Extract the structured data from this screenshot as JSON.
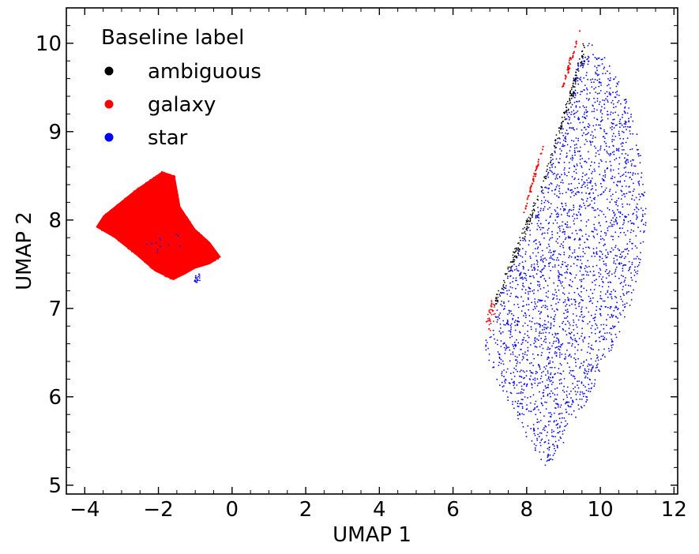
{
  "chart_data": {
    "type": "scatter",
    "title": "",
    "xlabel": "UMAP 1",
    "ylabel": "UMAP 2",
    "xlim": [
      -4.5,
      12.1
    ],
    "ylim": [
      4.9,
      10.4
    ],
    "xticks": [
      -4,
      -2,
      0,
      2,
      4,
      6,
      8,
      10,
      12
    ],
    "xtick_labels": [
      "−4",
      "−2",
      "0",
      "2",
      "4",
      "6",
      "8",
      "10",
      "12"
    ],
    "yticks": [
      5,
      6,
      7,
      8,
      9,
      10
    ],
    "ytick_labels": [
      "5",
      "6",
      "7",
      "8",
      "9",
      "10"
    ],
    "grid": false,
    "legend": {
      "title": "Baseline label",
      "placement": "top-left",
      "entries": [
        {
          "label": "ambiguous",
          "color": "#000000"
        },
        {
          "label": "galaxy",
          "color": "#ff0000"
        },
        {
          "label": "star",
          "color": "#0000ff"
        }
      ]
    },
    "series": [
      {
        "name": "galaxy",
        "color": "#ff0000",
        "regions": [
          {
            "polygon": [
              [
                -3.7,
                7.92
              ],
              [
                -3.5,
                8.05
              ],
              [
                -2.6,
                8.35
              ],
              [
                -1.9,
                8.55
              ],
              [
                -1.55,
                8.5
              ],
              [
                -1.4,
                8.15
              ],
              [
                -1.0,
                7.9
              ],
              [
                -0.6,
                7.75
              ],
              [
                -0.3,
                7.58
              ],
              [
                -0.6,
                7.5
              ],
              [
                -1.0,
                7.45
              ],
              [
                -1.3,
                7.38
              ],
              [
                -1.6,
                7.32
              ],
              [
                -2.1,
                7.42
              ],
              [
                -2.6,
                7.6
              ],
              [
                -3.2,
                7.8
              ]
            ],
            "n": 1400
          },
          {
            "polygon": [
              [
                9.45,
                10.15
              ],
              [
                9.15,
                9.8
              ],
              [
                8.9,
                9.4
              ],
              [
                8.5,
                8.9
              ],
              [
                8.05,
                8.2
              ],
              [
                7.9,
                8.05
              ],
              [
                8.25,
                8.6
              ],
              [
                8.7,
                9.15
              ],
              [
                9.2,
                9.75
              ]
            ],
            "n": 450
          },
          {
            "polygon": [
              [
                7.0,
                6.72
              ],
              [
                6.9,
                6.85
              ],
              [
                7.05,
                7.1
              ],
              [
                7.2,
                6.95
              ]
            ],
            "n": 40
          }
        ]
      },
      {
        "name": "ambiguous",
        "color": "#000000",
        "regions": [
          {
            "polygon": [
              [
                9.55,
                10.05
              ],
              [
                9.35,
                9.7
              ],
              [
                8.9,
                9.1
              ],
              [
                8.4,
                8.4
              ],
              [
                7.9,
                7.9
              ],
              [
                7.4,
                7.4
              ],
              [
                7.05,
                7.0
              ],
              [
                7.15,
                7.0
              ],
              [
                7.55,
                7.4
              ],
              [
                8.1,
                7.95
              ],
              [
                8.6,
                8.55
              ],
              [
                9.1,
                9.2
              ],
              [
                9.6,
                9.8
              ]
            ],
            "n": 260
          }
        ]
      },
      {
        "name": "star",
        "color": "#0000ff",
        "regions": [
          {
            "polygon": [
              [
                9.6,
                10.08
              ],
              [
                10.1,
                9.85
              ],
              [
                10.6,
                9.5
              ],
              [
                11.0,
                9.0
              ],
              [
                11.2,
                8.5
              ],
              [
                11.25,
                8.0
              ],
              [
                11.1,
                7.55
              ],
              [
                10.8,
                7.0
              ],
              [
                10.3,
                6.5
              ],
              [
                9.7,
                6.0
              ],
              [
                9.2,
                5.6
              ],
              [
                8.8,
                5.3
              ],
              [
                8.5,
                5.2
              ],
              [
                8.1,
                5.45
              ],
              [
                7.5,
                5.9
              ],
              [
                7.0,
                6.3
              ],
              [
                6.85,
                6.6
              ],
              [
                7.2,
                7.05
              ],
              [
                7.7,
                7.6
              ],
              [
                8.2,
                8.05
              ],
              [
                8.6,
                8.6
              ],
              [
                9.1,
                9.3
              ],
              [
                9.4,
                9.8
              ]
            ],
            "n": 2600
          },
          {
            "polygon": [
              [
                -1.05,
                7.35
              ],
              [
                -0.9,
                7.42
              ],
              [
                -0.85,
                7.32
              ],
              [
                -1.0,
                7.28
              ]
            ],
            "n": 20
          },
          {
            "polygon": [
              [
                -2.6,
                7.8
              ],
              [
                -1.4,
                7.95
              ],
              [
                -1.3,
                7.7
              ],
              [
                -2.0,
                7.6
              ]
            ],
            "n": 12
          }
        ]
      }
    ]
  }
}
